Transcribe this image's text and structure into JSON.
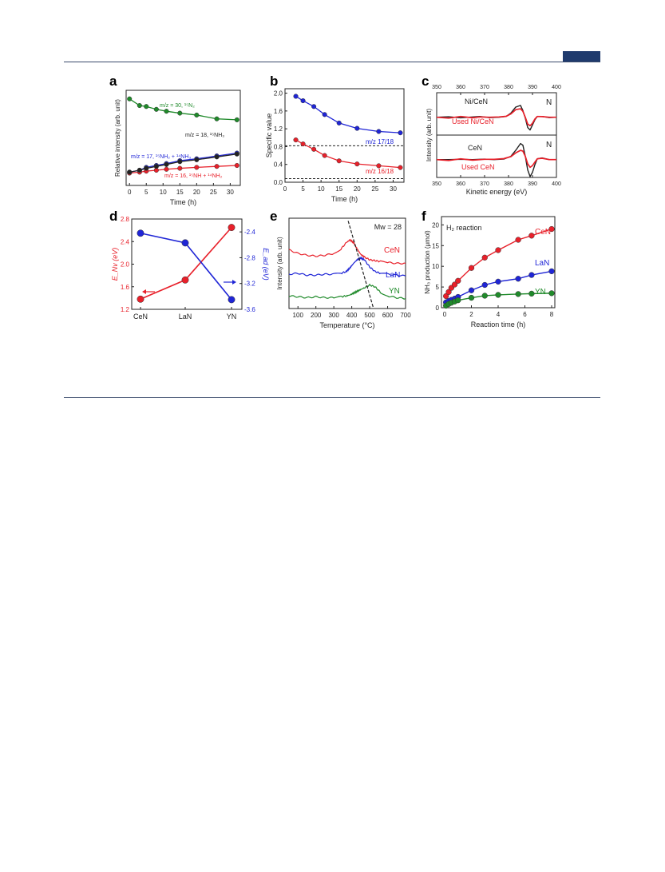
{
  "colors": {
    "red": "#e8202a",
    "blue": "#1f25d6",
    "green": "#1f8a2a",
    "black": "#222222",
    "header_badge": "#1f3a6d"
  },
  "panel_labels": [
    "a",
    "b",
    "c",
    "d",
    "e",
    "f"
  ],
  "chart_data": [
    {
      "id": "a",
      "type": "line",
      "xlabel": "Time (h)",
      "ylabel": "Relative intensity (arb. unit)",
      "xlim": [
        -1,
        33
      ],
      "ylim": [
        0,
        1
      ],
      "xticks": [
        0,
        5,
        10,
        15,
        20,
        25,
        30
      ],
      "x": [
        0,
        3,
        5,
        8,
        11,
        15,
        20,
        26,
        32
      ],
      "series": [
        {
          "name": "m/z = 30, ¹⁵N₂",
          "color": "#1f8a2a",
          "values": [
            0.91,
            0.84,
            0.83,
            0.8,
            0.78,
            0.76,
            0.74,
            0.7,
            0.69
          ]
        },
        {
          "name": "m/z = 18, ¹⁵NH₃",
          "color": "#222222",
          "values": [
            0.14,
            0.16,
            0.18,
            0.2,
            0.22,
            0.25,
            0.27,
            0.3,
            0.33
          ]
        },
        {
          "name": "m/z = 17, ¹⁵NH₂ + ¹⁴NH₃",
          "color": "#1f25d6",
          "values": [
            0.14,
            0.16,
            0.19,
            0.21,
            0.23,
            0.26,
            0.28,
            0.31,
            0.34
          ]
        },
        {
          "name": "m/z = 16, ¹⁵NH + ¹⁴NH₂",
          "color": "#e8202a",
          "values": [
            0.13,
            0.14,
            0.15,
            0.16,
            0.17,
            0.18,
            0.19,
            0.2,
            0.21
          ]
        }
      ]
    },
    {
      "id": "b",
      "type": "line",
      "xlabel": "Time (h)",
      "ylabel": "Specific value",
      "xlim": [
        0,
        33
      ],
      "ylim": [
        0,
        2.1
      ],
      "xticks": [
        0,
        5,
        10,
        15,
        20,
        25,
        30
      ],
      "yticks": [
        0.0,
        0.4,
        0.8,
        1.2,
        1.6,
        2.0
      ],
      "hlines": [
        0.82,
        0.08
      ],
      "x": [
        3,
        5,
        8,
        11,
        15,
        20,
        26,
        32
      ],
      "series": [
        {
          "name": "m/z 17/18",
          "color": "#1f25d6",
          "values": [
            1.93,
            1.83,
            1.7,
            1.52,
            1.33,
            1.21,
            1.14,
            1.11
          ]
        },
        {
          "name": "m/z 16/18",
          "color": "#e8202a",
          "values": [
            0.95,
            0.86,
            0.74,
            0.6,
            0.48,
            0.41,
            0.37,
            0.33
          ]
        }
      ]
    },
    {
      "id": "c",
      "type": "line",
      "xlabel": "Kinetic energy (eV)",
      "ylabel": "Intensity (arb. unit)",
      "xlim": [
        350,
        400
      ],
      "xticks": [
        350,
        360,
        370,
        380,
        390,
        400
      ],
      "subplots": [
        {
          "element_label": "N",
          "series": [
            {
              "name": "Ni/CeN",
              "color": "#222222",
              "x": [
                350,
                355,
                360,
                365,
                368,
                372,
                376,
                379,
                381,
                383,
                385,
                386,
                387,
                388,
                389,
                390,
                391,
                392,
                394,
                397,
                400
              ],
              "values": [
                0.0,
                0.03,
                -0.03,
                0.02,
                0.05,
                -0.02,
                0.0,
                0.05,
                0.25,
                0.6,
                0.7,
                0.4,
                -0.05,
                -0.6,
                -0.75,
                -0.45,
                -0.15,
                0.05,
                0.05,
                -0.02,
                0.0
              ]
            },
            {
              "name": "Used Ni/CeN",
              "color": "#e8202a",
              "x": [
                350,
                355,
                360,
                365,
                368,
                372,
                376,
                379,
                381,
                383,
                385,
                386,
                387,
                388,
                389,
                390,
                391,
                392,
                394,
                397,
                400
              ],
              "values": [
                0.0,
                -0.05,
                0.05,
                -0.03,
                0.02,
                0.0,
                0.02,
                0.06,
                0.2,
                0.45,
                0.5,
                0.35,
                0.0,
                -0.4,
                -0.5,
                -0.35,
                -0.1,
                0.05,
                0.04,
                0.0,
                0.0
              ]
            }
          ]
        },
        {
          "element_label": "N",
          "series": [
            {
              "name": "CeN",
              "color": "#222222",
              "x": [
                350,
                355,
                360,
                365,
                370,
                374,
                378,
                381,
                383,
                385,
                386,
                387,
                388,
                389,
                390,
                391,
                392,
                394,
                397,
                400
              ],
              "values": [
                0.0,
                0.0,
                0.02,
                0.0,
                0.03,
                0.0,
                0.03,
                0.2,
                0.55,
                0.95,
                0.85,
                0.2,
                -0.6,
                -1.0,
                -0.75,
                -0.3,
                0.05,
                0.1,
                0.0,
                0.0
              ]
            },
            {
              "name": "Used CeN",
              "color": "#e8202a",
              "x": [
                350,
                355,
                360,
                365,
                370,
                374,
                378,
                381,
                383,
                385,
                386,
                387,
                388,
                389,
                390,
                391,
                392,
                394,
                397,
                400
              ],
              "values": [
                0.0,
                -0.05,
                0.05,
                -0.03,
                0.02,
                0.02,
                0.06,
                0.18,
                0.4,
                0.55,
                0.5,
                0.2,
                -0.25,
                -0.45,
                -0.35,
                -0.15,
                0.05,
                0.08,
                0.0,
                0.0
              ]
            }
          ]
        }
      ]
    },
    {
      "id": "d",
      "type": "line",
      "categories": [
        "CeN",
        "LaN",
        "YN"
      ],
      "ylabel_left": "E_Nv (eV)",
      "ylabel_right": "E_ad (eV)",
      "ylim_left": [
        1.2,
        2.8
      ],
      "yticks_left": [
        1.2,
        1.6,
        2.0,
        2.4,
        2.8
      ],
      "ylim_right": [
        -3.6,
        -2.2
      ],
      "yticks_right": [
        -2.4,
        -2.8,
        -3.2,
        -3.6
      ],
      "series": [
        {
          "name": "E_Nv",
          "color": "#e8202a",
          "axis": "left",
          "values": [
            1.38,
            1.72,
            2.65
          ]
        },
        {
          "name": "E_ad",
          "color": "#1f25d6",
          "axis": "right",
          "values": [
            -2.42,
            -2.57,
            -3.45
          ]
        }
      ]
    },
    {
      "id": "e",
      "type": "line",
      "xlabel": "Temperature (°C)",
      "ylabel": "Intensity (arb. unit)",
      "annotation": "Mw = 28",
      "xlim": [
        50,
        700
      ],
      "ylim": [
        0,
        10
      ],
      "xticks": [
        100,
        200,
        300,
        400,
        500,
        600,
        700
      ],
      "x": [
        50,
        100,
        150,
        200,
        250,
        300,
        340,
        370,
        390,
        410,
        430,
        450,
        470,
        500,
        530,
        560,
        600,
        650,
        700
      ],
      "series": [
        {
          "name": "CeN",
          "color": "#e8202a",
          "values": [
            6.5,
            6.1,
            5.9,
            5.8,
            5.9,
            6.1,
            6.6,
            7.3,
            7.6,
            7.3,
            6.6,
            6.0,
            5.7,
            5.4,
            5.3,
            5.2,
            5.1,
            5.0,
            5.0
          ]
        },
        {
          "name": "LaN",
          "color": "#1f25d6",
          "values": [
            3.8,
            3.9,
            3.7,
            3.7,
            3.8,
            3.8,
            3.9,
            4.1,
            4.5,
            5.0,
            5.4,
            5.6,
            5.4,
            4.6,
            4.1,
            3.9,
            3.8,
            3.7,
            3.6
          ]
        },
        {
          "name": "YN",
          "color": "#1f8a2a",
          "values": [
            1.4,
            1.3,
            1.2,
            1.3,
            1.2,
            1.2,
            1.3,
            1.4,
            1.5,
            1.7,
            1.9,
            2.1,
            2.3,
            2.6,
            2.4,
            1.8,
            1.4,
            1.2,
            1.1
          ]
        }
      ],
      "dashed_line": {
        "x": [
          380,
          520
        ],
        "y": [
          9.7,
          0.1
        ]
      }
    },
    {
      "id": "f",
      "type": "line",
      "xlabel": "Reaction time (h)",
      "ylabel": "NH₃ production (μmol)",
      "annotation": "H₂ reaction",
      "xlim": [
        0,
        8
      ],
      "ylim": [
        0,
        22
      ],
      "xticks": [
        0,
        2,
        4,
        6,
        8
      ],
      "yticks": [
        0,
        5,
        10,
        15,
        20
      ],
      "x": [
        0.1,
        0.3,
        0.5,
        0.75,
        1,
        2,
        3,
        4,
        5.5,
        6.5,
        8
      ],
      "series": [
        {
          "name": "CeN",
          "color": "#e8202a",
          "values": [
            2.8,
            3.8,
            4.8,
            5.6,
            6.5,
            9.6,
            12.1,
            13.9,
            16.4,
            17.4,
            19.0
          ]
        },
        {
          "name": "LaN",
          "color": "#1f25d6",
          "values": [
            1.3,
            1.6,
            1.9,
            2.2,
            2.6,
            4.2,
            5.5,
            6.3,
            7.0,
            7.9,
            8.8
          ]
        },
        {
          "name": "YN",
          "color": "#1f8a2a",
          "values": [
            0.5,
            0.9,
            1.2,
            1.5,
            1.8,
            2.4,
            2.9,
            3.1,
            3.3,
            3.4,
            3.5
          ]
        }
      ]
    }
  ]
}
